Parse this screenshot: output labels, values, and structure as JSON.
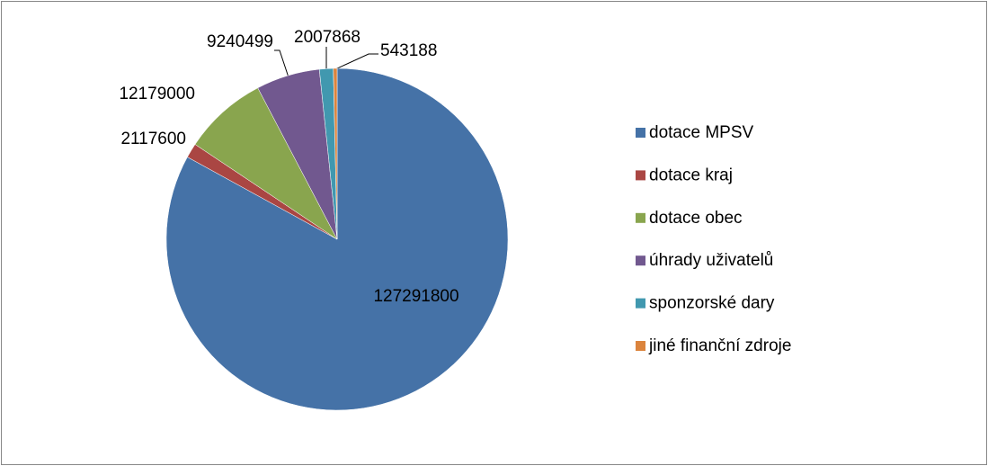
{
  "chart_data": {
    "type": "pie",
    "categories": [
      "dotace MPSV",
      "dotace kraj",
      "dotace obec",
      "úhrady uživatelů",
      "sponzorské dary",
      "jiné finanční zdroje"
    ],
    "values": [
      127291800,
      2117600,
      12179000,
      9240499,
      2007868,
      543188
    ],
    "colors": [
      "#4572a7",
      "#aa4643",
      "#89a54e",
      "#71588f",
      "#4198af",
      "#db843d"
    ],
    "legend": "right"
  }
}
